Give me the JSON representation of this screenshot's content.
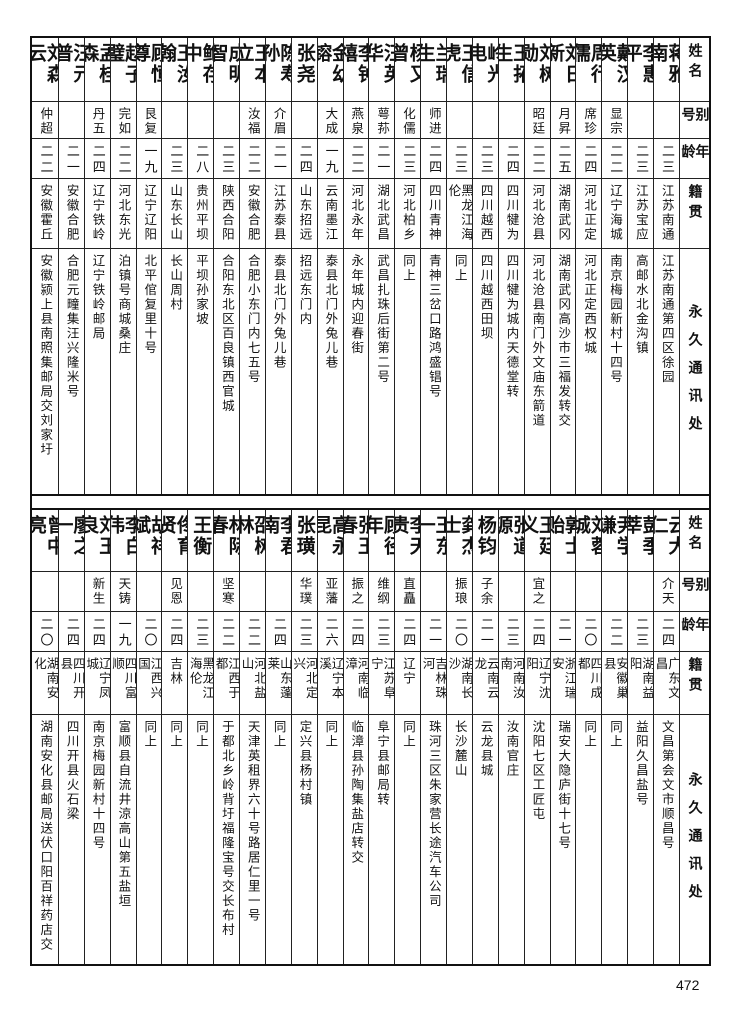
{
  "header": {
    "name": "姓名",
    "alias": "别号",
    "age": "年龄",
    "native": "籍贯",
    "address": "永久通讯处"
  },
  "top": {
    "people": [
      {
        "name": "蒋雅南",
        "alias": "",
        "age": "二三",
        "native": "江苏南通",
        "address": "江苏南通第四区徐园"
      },
      {
        "name": "李惠平",
        "alias": "",
        "age": "二三",
        "native": "江苏宝应",
        "address": "高邮水北金沟镇"
      },
      {
        "name": "戴汉英",
        "alias": "显宗",
        "age": "二二",
        "native": "辽宁海城",
        "address": "南京梅园新村十四号"
      },
      {
        "name": "周行儒",
        "alias": "席珍",
        "age": "二四",
        "native": "河北正定",
        "address": "河北正定西权城"
      },
      {
        "name": "刘日新",
        "alias": "月昇",
        "age": "二五",
        "native": "湖南武冈",
        "address": "湖南武冈高沙市三福发转交"
      },
      {
        "name": "刘树勋",
        "alias": "昭廷",
        "age": "二二",
        "native": "河北沧县",
        "address": "河北沧县南门外文庙东箭道"
      },
      {
        "name": "王拓生",
        "alias": "",
        "age": "二四",
        "native": "四川犍为",
        "address": "四川犍为城内天德堂转"
      },
      {
        "name": "岭光电",
        "alias": "",
        "age": "二三",
        "native": "四川越西",
        "address": "四川越西田坝"
      },
      {
        "name": "王信虎",
        "alias": "",
        "age": "二三",
        "native": "黑龙江海伦",
        "address": "同上"
      },
      {
        "name": "兰瑞生",
        "alias": "师进",
        "age": "二四",
        "native": "四川青神",
        "address": "青神三岔口路鸿盛锠号"
      },
      {
        "name": "杨又曾",
        "alias": "化儒",
        "age": "二三",
        "native": "河北柏乡",
        "address": "同上"
      },
      {
        "name": "汪英华",
        "alias": "萼荪",
        "age": "二一",
        "native": "湖北武昌",
        "address": "武昌扎珠后街第二号"
      },
      {
        "name": "李钟禧",
        "alias": "燕泉",
        "age": "二二",
        "native": "河北永年",
        "address": "永年城内迎春街"
      },
      {
        "name": "金幼镕",
        "alias": "大成",
        "age": "一九",
        "native": "云南墨江",
        "address": "泰县北门外兔儿巷"
      },
      {
        "name": "张尧",
        "alias": "",
        "age": "二四",
        "native": "山东招远",
        "address": "招远东门内"
      },
      {
        "name": "陈寿孙",
        "alias": "介眉",
        "age": "二一",
        "native": "江苏泰县",
        "address": "泰县北门外兔儿巷"
      },
      {
        "name": "王本立",
        "alias": "汝福",
        "age": "二二",
        "native": "安徽合肥",
        "address": "合肥小东门内七五号"
      },
      {
        "name": "成明智",
        "alias": "",
        "age": "二三",
        "native": "陕西合阳",
        "address": "合阳东北区百良镇西官城"
      },
      {
        "name": "鲍存中",
        "alias": "",
        "age": "二八",
        "native": "贵州平坝",
        "address": "平坝孙家坡"
      },
      {
        "name": "王汝翰",
        "alias": "",
        "age": "二三",
        "native": "山东长山",
        "address": "长山周村"
      },
      {
        "name": "顾恒尊",
        "alias": "艮复",
        "age": "一九",
        "native": "辽宁辽阳",
        "address": "北平倌复里十号"
      },
      {
        "name": "赵子璧",
        "alias": "完如",
        "age": "二二",
        "native": "河北东光",
        "address": "泊镇号商城桑庄"
      },
      {
        "name": "孟桂森",
        "alias": "丹五",
        "age": "二四",
        "native": "辽宁铁岭",
        "address": "辽宁铁岭邮局"
      },
      {
        "name": "汪元普",
        "alias": "",
        "age": "二一",
        "native": "安徽合肥",
        "address": "合肥元疃集汪兴隆米号"
      },
      {
        "name": "刘森云",
        "alias": "仲超",
        "age": "二二",
        "native": "安徽霍丘",
        "address": "安徽颍上县南照集邮局交刘家圩"
      }
    ]
  },
  "bottom": {
    "people": [
      {
        "name": "云大仁",
        "alias": "介天",
        "age": "二四",
        "native": "广东文昌",
        "address": "文昌第会文市顺昌号"
      },
      {
        "name": "彭季莘",
        "alias": "",
        "age": "二三",
        "native": "湖南益阳",
        "address": "益阳久昌盐号"
      },
      {
        "name": "尹学谦",
        "alias": "",
        "age": "二二",
        "native": "安徽巢县",
        "address": "同上"
      },
      {
        "name": "刘蓉城",
        "alias": "",
        "age": "二〇",
        "native": "四川成都",
        "address": "同上"
      },
      {
        "name": "郭士贻",
        "alias": "",
        "age": "二一",
        "native": "浙江瑞安",
        "address": "瑞安大隐庐街十七号"
      },
      {
        "name": "王廷义",
        "alias": "宜之",
        "age": "二四",
        "native": "辽宁沈阳",
        "address": "沈阳七区工匠屯"
      },
      {
        "name": "张道源",
        "alias": "",
        "age": "二三",
        "native": "河南汝南",
        "address": "汝南官庄"
      },
      {
        "name": "杨钧",
        "alias": "子余",
        "age": "二一",
        "native": "云南云龙",
        "address": "云龙县城"
      },
      {
        "name": "龚杰士",
        "alias": "振琅",
        "age": "二〇",
        "native": "湖南长沙",
        "address": "长沙麓山"
      },
      {
        "name": "王东一",
        "alias": "",
        "age": "二一",
        "native": "吉林珠河",
        "address": "珠河三区朱家营长途汽车公司"
      },
      {
        "name": "李天贵",
        "alias": "直矗",
        "age": "二四",
        "native": "辽宁",
        "address": "同上"
      },
      {
        "name": "顾径年",
        "alias": "维纲",
        "age": "二三",
        "native": "江苏阜宁",
        "address": "阜宁县邮局转"
      },
      {
        "name": "张玉春",
        "alias": "振之",
        "age": "二四",
        "native": "河南临漳",
        "address": "临漳县孙陶集盐店转交"
      },
      {
        "name": "高永昆",
        "alias": "亚藩",
        "age": "二六",
        "native": "辽宁本溪",
        "address": "同上"
      },
      {
        "name": "张璜",
        "alias": "华璞",
        "age": "二三",
        "native": "河北定兴",
        "address": "定兴县杨村镇"
      },
      {
        "name": "李君南",
        "alias": "",
        "age": "二四",
        "native": "山东蓬莱",
        "address": "同上"
      },
      {
        "name": "邵树林",
        "alias": "",
        "age": "二二",
        "native": "河北盐山",
        "address": "天津英租界六十号路居仁里一号"
      },
      {
        "name": "林际春",
        "alias": "坚寒",
        "age": "二二",
        "native": "江西于都",
        "address": "于都北乡岭背圩福隆宝号交长布村"
      },
      {
        "name": "王衡",
        "alias": "",
        "age": "二三",
        "native": "黑龙江海伦",
        "address": "同上"
      },
      {
        "name": "佟育贤",
        "alias": "见恩",
        "age": "二四",
        "native": "吉林",
        "address": "同上"
      },
      {
        "name": "胡祥斌",
        "alias": "",
        "age": "二〇",
        "native": "江西兴国",
        "address": "同上"
      },
      {
        "name": "李白伟",
        "alias": "天铸",
        "age": "一九",
        "native": "四川富顺",
        "address": "富顺县自流井涼高山第五盐垣"
      },
      {
        "name": "刘玉良",
        "alias": "新生",
        "age": "二四",
        "native": "辽宁凤城",
        "address": "南京梅园新村十四号"
      },
      {
        "name": "廖之一",
        "alias": "",
        "age": "二四",
        "native": "四川开县",
        "address": "四川开县火石梁"
      },
      {
        "name": "曾中亮",
        "alias": "",
        "age": "二〇",
        "native": "湖南安化",
        "address": "湖南安化县邮局送伏口阳百祥药店交"
      }
    ]
  },
  "page_number": "472"
}
